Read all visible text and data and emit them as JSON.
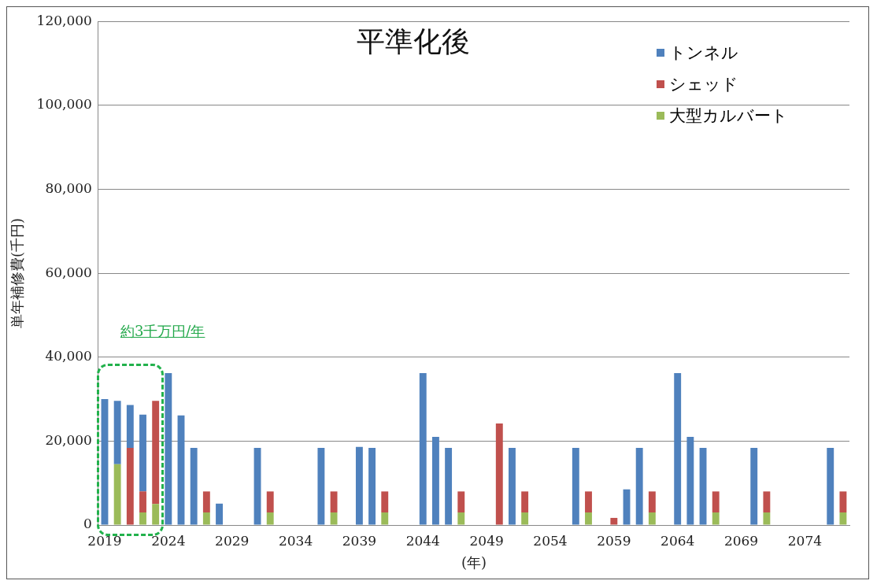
{
  "chart_data": {
    "type": "bar",
    "title": "平準化後",
    "xlabel": "(年)",
    "ylabel": "単年補修費(千円)",
    "categories": [
      "2019",
      null,
      null,
      null,
      null,
      "2024",
      null,
      null,
      null,
      null,
      "2029",
      null,
      null,
      null,
      null,
      "2034",
      null,
      null,
      null,
      null,
      "2039",
      null,
      null,
      null,
      null,
      "2044",
      null,
      null,
      null,
      null,
      "2049",
      null,
      null,
      null,
      null,
      "2054",
      null,
      null,
      null,
      null,
      "2059",
      null,
      null,
      null,
      null,
      "2064",
      null,
      null,
      null,
      null,
      "2069",
      null,
      null,
      null,
      null,
      "2074",
      null,
      null,
      null
    ],
    "stacked": true,
    "series": [
      {
        "name": "大型カルバート",
        "color": "#9bbb59",
        "values": [
          null,
          14500,
          null,
          3000,
          5000,
          null,
          null,
          null,
          3000,
          null,
          null,
          null,
          null,
          3000,
          null,
          null,
          null,
          null,
          3000,
          null,
          null,
          null,
          3000,
          null,
          null,
          null,
          null,
          null,
          3000,
          null,
          null,
          null,
          null,
          3000,
          null,
          null,
          null,
          null,
          3000,
          null,
          null,
          null,
          null,
          3000,
          null,
          null,
          null,
          null,
          3000,
          null,
          null,
          null,
          3000,
          null,
          null,
          null,
          null,
          null,
          3000
        ]
      },
      {
        "name": "シェッド",
        "color": "#c0504d",
        "values": [
          null,
          null,
          18400,
          5000,
          24600,
          null,
          null,
          null,
          5000,
          null,
          null,
          null,
          null,
          5000,
          null,
          null,
          null,
          null,
          5000,
          null,
          null,
          null,
          5000,
          null,
          null,
          null,
          null,
          null,
          5000,
          null,
          null,
          24200,
          null,
          5000,
          null,
          null,
          null,
          null,
          5000,
          null,
          1700,
          null,
          null,
          5000,
          null,
          null,
          null,
          null,
          5000,
          null,
          null,
          null,
          5000,
          null,
          null,
          null,
          null,
          null,
          5000
        ]
      },
      {
        "name": "トンネル",
        "color": "#4f81bd",
        "values": [
          30000,
          15100,
          10200,
          18300,
          null,
          36200,
          26100,
          18400,
          null,
          5100,
          null,
          null,
          18400,
          null,
          null,
          null,
          null,
          18400,
          null,
          null,
          18600,
          18400,
          null,
          null,
          null,
          36200,
          21000,
          18400,
          null,
          null,
          null,
          null,
          18400,
          null,
          null,
          null,
          null,
          18400,
          null,
          null,
          null,
          8500,
          18400,
          null,
          null,
          36200,
          21000,
          18400,
          null,
          null,
          null,
          18400,
          null,
          null,
          null,
          null,
          null,
          18400,
          null
        ]
      }
    ],
    "ylim": [
      0,
      120000
    ],
    "yticks": [
      {
        "value": 0,
        "label": "0"
      },
      {
        "value": 20000,
        "label": "20,000"
      },
      {
        "value": 40000,
        "label": "40,000"
      },
      {
        "value": 60000,
        "label": "60,000"
      },
      {
        "value": 80000,
        "label": "80,000"
      },
      {
        "value": 100000,
        "label": "100,000"
      },
      {
        "value": 120000,
        "label": "120,000"
      }
    ],
    "grid": "y",
    "legend": "top right",
    "annotations": [
      "約3千万円/年"
    ]
  }
}
